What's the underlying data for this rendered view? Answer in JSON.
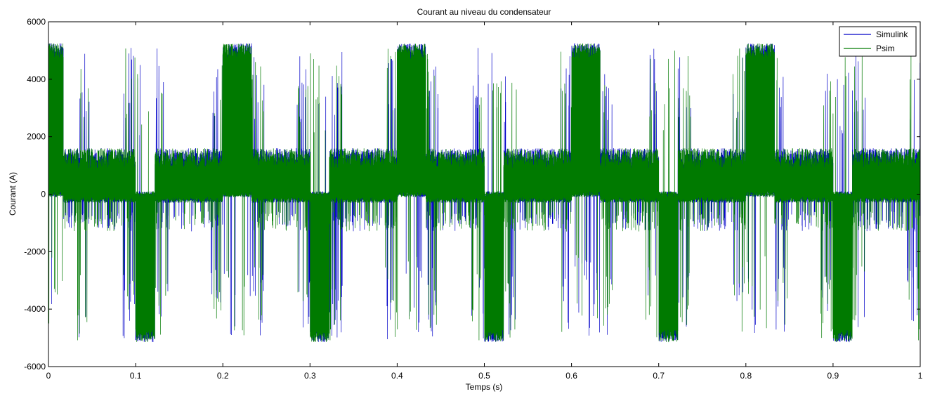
{
  "chart_data": {
    "type": "line",
    "title": "Courant au niveau du condensateur",
    "xlabel": "Temps (s)",
    "ylabel": "Courant (A)",
    "xlim": [
      0,
      1
    ],
    "ylim": [
      -6000,
      6000
    ],
    "xticks": [
      0,
      0.1,
      0.2,
      0.3,
      0.4,
      0.5,
      0.6,
      0.7,
      0.8,
      0.9,
      1
    ],
    "xtick_labels": [
      "0",
      "0.1",
      "0.2",
      "0.3",
      "0.4",
      "0.5",
      "0.6",
      "0.7",
      "0.8",
      "0.9",
      "1"
    ],
    "yticks": [
      -6000,
      -4000,
      -2000,
      0,
      2000,
      4000,
      6000
    ],
    "ytick_labels": [
      "-6000",
      "-4000",
      "-2000",
      "0",
      "2000",
      "4000",
      "6000"
    ],
    "grid": false,
    "legend_position": "top-right",
    "period": 0.2,
    "regime_segments": [
      {
        "from": 0.0,
        "to": 0.017,
        "min": 0,
        "max": 5200
      },
      {
        "from": 0.017,
        "to": 0.1,
        "min": -1300,
        "max": 1800
      },
      {
        "from": 0.1,
        "to": 0.122,
        "min": -5100,
        "max": 5000
      },
      {
        "from": 0.122,
        "to": 0.2,
        "min": -1300,
        "max": 1600
      },
      {
        "from": 0.2,
        "to": 0.233,
        "min": -5000,
        "max": 5250
      },
      {
        "from": 0.233,
        "to": 1.0,
        "note": "pattern repeats with period 0.2 s"
      }
    ],
    "series": [
      {
        "name": "Simulink",
        "color": "#0000c8"
      },
      {
        "name": "Psim",
        "color": "#007a00"
      }
    ]
  }
}
